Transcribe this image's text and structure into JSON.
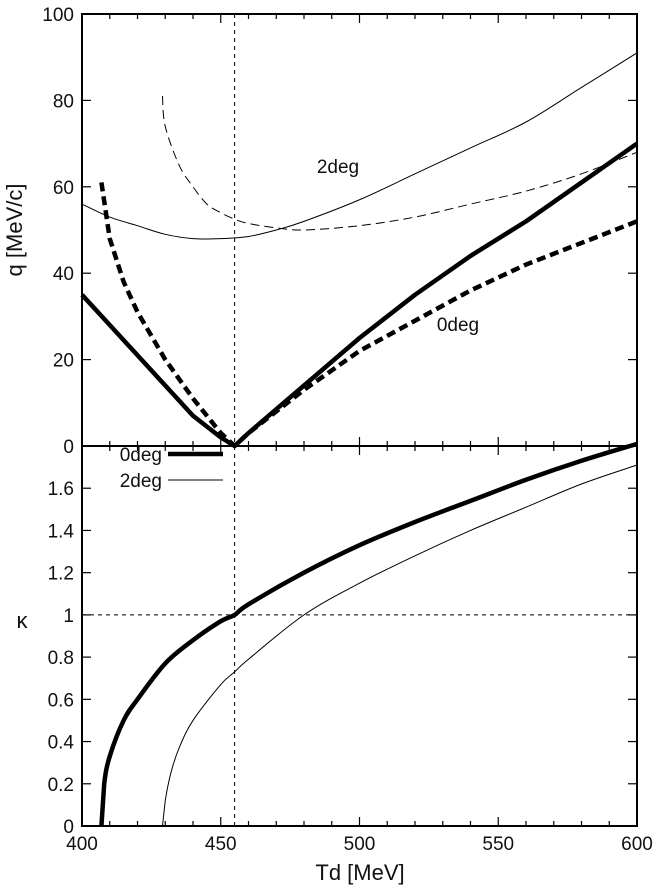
{
  "chart_data": [
    {
      "type": "line",
      "panel": "top",
      "xlabel": "Td [MeV]",
      "ylabel": "q  [MeV/c]",
      "xlim": [
        400,
        600
      ],
      "ylim": [
        0,
        100
      ],
      "yticks": [
        0,
        20,
        40,
        60,
        80,
        100
      ],
      "reference_lines": [
        {
          "orientation": "vertical",
          "x": 455,
          "style": "dotted"
        }
      ],
      "annotations": [
        {
          "text": "2deg",
          "x": 498,
          "y": 61
        },
        {
          "text": "0deg",
          "x": 543,
          "y": 29
        }
      ],
      "series": [
        {
          "name": "0deg solid (q)",
          "style": "thick-solid",
          "x": [
            400,
            410,
            420,
            430,
            440,
            450,
            455,
            460,
            480,
            500,
            520,
            540,
            560,
            580,
            600
          ],
          "y": [
            35,
            28,
            21,
            14,
            7,
            2,
            0,
            3,
            14,
            25,
            35,
            44,
            52,
            61,
            70
          ]
        },
        {
          "name": "0deg dashed (q)",
          "style": "thick-dashed",
          "x": [
            407,
            410,
            415,
            420,
            430,
            440,
            450,
            455,
            460,
            480,
            500,
            520,
            540,
            560,
            580,
            600
          ],
          "y": [
            61,
            48,
            38,
            31,
            20,
            11,
            3,
            0,
            3,
            13,
            22,
            29,
            36,
            42,
            47,
            52
          ]
        },
        {
          "name": "2deg solid (q)",
          "style": "thin-solid",
          "x": [
            400,
            410,
            420,
            430,
            440,
            450,
            460,
            470,
            480,
            500,
            520,
            540,
            560,
            580,
            600
          ],
          "y": [
            56,
            53,
            51,
            49,
            48,
            48,
            48.5,
            50,
            52,
            57,
            63,
            69,
            75,
            83,
            91
          ]
        },
        {
          "name": "2deg dashed (q)",
          "style": "thin-dashed",
          "x": [
            429,
            430,
            435,
            440,
            445,
            450,
            455,
            460,
            470,
            480,
            500,
            520,
            540,
            560,
            580,
            600
          ],
          "y": [
            81,
            74,
            65,
            60,
            56,
            54,
            52.5,
            51.5,
            50.5,
            50,
            51,
            53,
            56,
            59,
            63,
            68
          ]
        }
      ]
    },
    {
      "type": "line",
      "panel": "bottom",
      "xlabel": "Td [MeV]",
      "ylabel": "κ",
      "xlim": [
        400,
        600
      ],
      "ylim": [
        0,
        1.8
      ],
      "xticks": [
        400,
        450,
        500,
        550,
        600
      ],
      "yticks": [
        0,
        0.2,
        0.4,
        0.6,
        0.8,
        1,
        1.2,
        1.4,
        1.6
      ],
      "reference_lines": [
        {
          "orientation": "vertical",
          "x": 455,
          "style": "dotted"
        },
        {
          "orientation": "horizontal",
          "y": 1,
          "style": "dotted"
        }
      ],
      "legend": {
        "position": "top-left",
        "entries": [
          {
            "label": "0deg",
            "style": "thick-solid"
          },
          {
            "label": "2deg",
            "style": "thin-solid"
          }
        ]
      },
      "series": [
        {
          "name": "0deg",
          "style": "thick-solid",
          "x": [
            407,
            408,
            410,
            415,
            420,
            430,
            440,
            450,
            455,
            460,
            480,
            500,
            520,
            540,
            560,
            580,
            600
          ],
          "y": [
            0,
            0.2,
            0.33,
            0.5,
            0.6,
            0.77,
            0.88,
            0.97,
            1.0,
            1.05,
            1.2,
            1.33,
            1.44,
            1.54,
            1.64,
            1.73,
            1.81
          ]
        },
        {
          "name": "2deg",
          "style": "thin-solid",
          "x": [
            429,
            430,
            432,
            435,
            440,
            450,
            455,
            460,
            480,
            500,
            520,
            540,
            560,
            580,
            600
          ],
          "y": [
            0,
            0.12,
            0.25,
            0.37,
            0.5,
            0.67,
            0.73,
            0.79,
            1.0,
            1.15,
            1.28,
            1.4,
            1.51,
            1.62,
            1.71
          ]
        }
      ]
    }
  ]
}
